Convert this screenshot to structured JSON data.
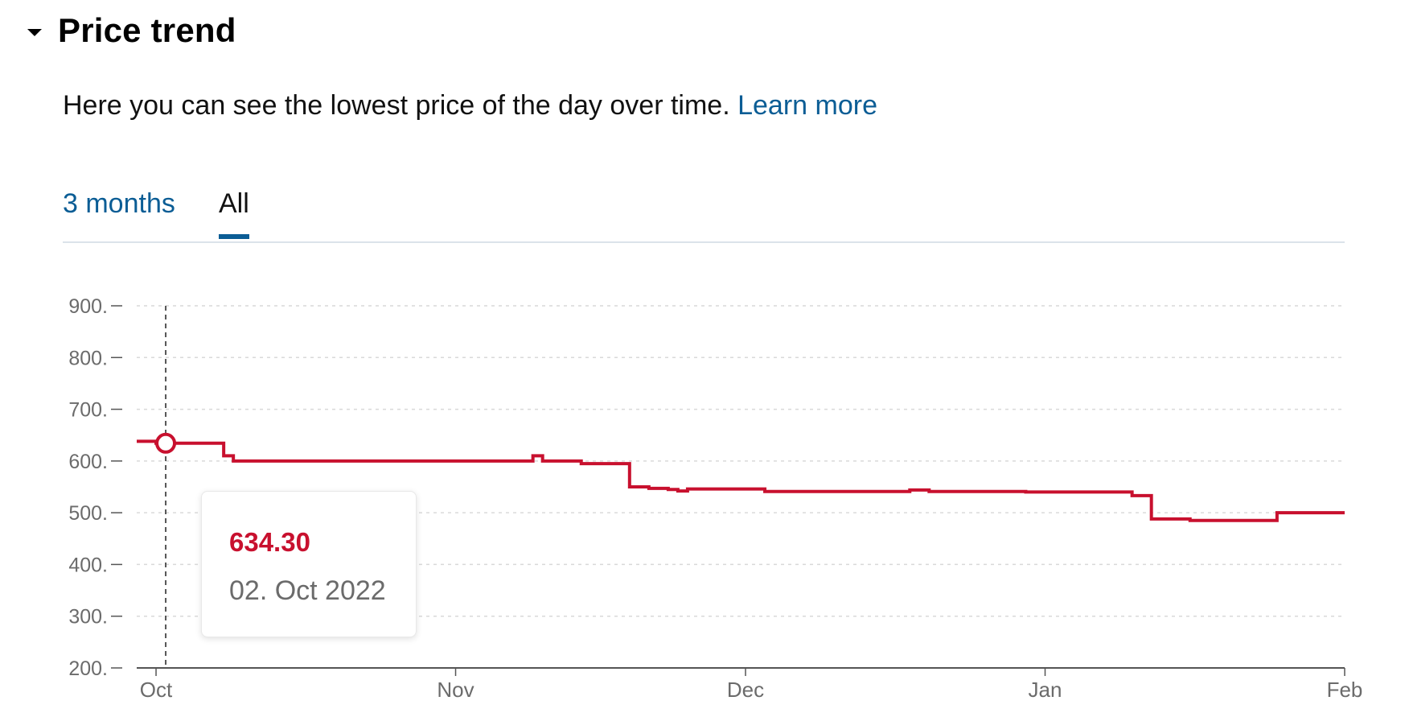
{
  "section": {
    "title": "Price trend",
    "description": "Here you can see the lowest price of the day over time.",
    "learn_more": "Learn more"
  },
  "tabs": [
    {
      "label": "3 months",
      "active": false
    },
    {
      "label": "All",
      "active": true
    }
  ],
  "tooltip": {
    "price": "634.30",
    "date": "02. Oct 2022"
  },
  "colors": {
    "line": "#c8102e",
    "link": "#0b5d95",
    "axis_text": "#6b6b6b"
  },
  "chart_data": {
    "type": "line",
    "step": true,
    "title": "",
    "xlabel": "",
    "ylabel": "",
    "ylim": [
      200,
      900
    ],
    "yticks": [
      "200.",
      "300.",
      "400.",
      "500.",
      "600.",
      "700.",
      "800.",
      "900."
    ],
    "ytick_values": [
      200,
      300,
      400,
      500,
      600,
      700,
      800,
      900
    ],
    "xlim": [
      "2022-09-29",
      "2023-02-01"
    ],
    "xticks": [
      {
        "label": "Oct",
        "date": "2022-10-01"
      },
      {
        "label": "Nov",
        "date": "2022-11-01"
      },
      {
        "label": "Dec",
        "date": "2022-12-01"
      },
      {
        "label": "Jan",
        "date": "2023-01-01"
      },
      {
        "label": "Feb",
        "date": "2023-02-01"
      }
    ],
    "grid": true,
    "highlight": {
      "date": "2022-10-02",
      "price": 634.3
    },
    "series": [
      {
        "points": [
          {
            "date": "2022-09-29",
            "price": 638
          },
          {
            "date": "2022-10-01",
            "price": 634.3
          },
          {
            "date": "2022-10-08",
            "price": 610
          },
          {
            "date": "2022-10-09",
            "price": 600
          },
          {
            "date": "2022-11-09",
            "price": 610
          },
          {
            "date": "2022-11-10",
            "price": 600
          },
          {
            "date": "2022-11-14",
            "price": 595
          },
          {
            "date": "2022-11-19",
            "price": 550
          },
          {
            "date": "2022-11-21",
            "price": 547
          },
          {
            "date": "2022-11-23",
            "price": 545
          },
          {
            "date": "2022-11-24",
            "price": 542
          },
          {
            "date": "2022-11-25",
            "price": 546
          },
          {
            "date": "2022-12-03",
            "price": 541
          },
          {
            "date": "2022-12-18",
            "price": 544
          },
          {
            "date": "2022-12-20",
            "price": 541
          },
          {
            "date": "2022-12-30",
            "price": 540
          },
          {
            "date": "2023-01-10",
            "price": 533
          },
          {
            "date": "2023-01-12",
            "price": 488
          },
          {
            "date": "2023-01-16",
            "price": 485
          },
          {
            "date": "2023-01-25",
            "price": 500
          },
          {
            "date": "2023-02-01",
            "price": 500
          }
        ]
      }
    ]
  }
}
